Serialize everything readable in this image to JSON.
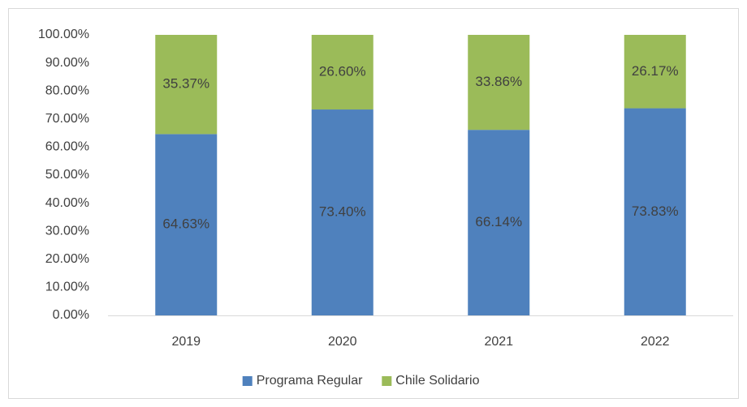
{
  "chart_data": {
    "type": "stacked_bar",
    "categories": [
      "2019",
      "2020",
      "2021",
      "2022"
    ],
    "series": [
      {
        "name": "Programa Regular",
        "color": "#4f81bd",
        "values": [
          64.63,
          73.4,
          66.14,
          73.83
        ],
        "value_labels": [
          "64.63%",
          "73.40%",
          "66.14%",
          "73.83%"
        ]
      },
      {
        "name": "Chile Solidario",
        "color": "#9bbb59",
        "values": [
          35.37,
          26.6,
          33.86,
          26.17
        ],
        "value_labels": [
          "35.37%",
          "26.60%",
          "33.86%",
          "26.17%"
        ]
      }
    ],
    "ylim": [
      0,
      100
    ],
    "yticks": [
      {
        "value": 0,
        "label": "0.00%"
      },
      {
        "value": 10,
        "label": "10.00%"
      },
      {
        "value": 20,
        "label": "20.00%"
      },
      {
        "value": 30,
        "label": "30.00%"
      },
      {
        "value": 40,
        "label": "40.00%"
      },
      {
        "value": 50,
        "label": "50.00%"
      },
      {
        "value": 60,
        "label": "60.00%"
      },
      {
        "value": 70,
        "label": "70.00%"
      },
      {
        "value": 80,
        "label": "80.00%"
      },
      {
        "value": 90,
        "label": "90.00%"
      },
      {
        "value": 100,
        "label": "100.00%"
      }
    ],
    "grid": false,
    "legend": "bottom"
  }
}
